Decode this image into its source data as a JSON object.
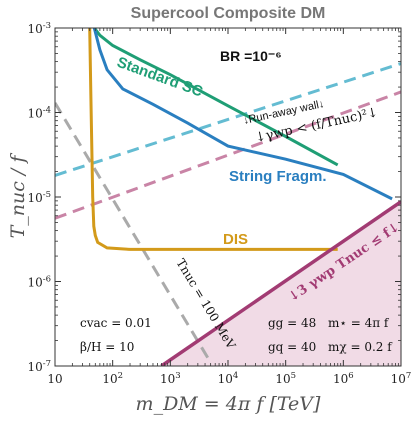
{
  "chart_data": {
    "type": "line",
    "title": "Supercool Composite DM",
    "xlabel": "m_DM = 4π f   [TeV]",
    "ylabel": "T_nuc / f",
    "x_scale": "log",
    "y_scale": "log",
    "xlim": [
      10,
      10000000
    ],
    "ylim": [
      1e-07,
      0.001
    ],
    "x_ticks": [
      "10",
      "10^2",
      "10^3",
      "10^4",
      "10^5",
      "10^6",
      "10^7"
    ],
    "y_ticks": [
      "10^-7",
      "10^-6",
      "10^-5",
      "10^-4",
      "10^-3"
    ],
    "grid": false,
    "colors": {
      "standard_sc": "#1f9e75",
      "string_fragm": "#2a7fc0",
      "dis": "#d39a1a",
      "run_away": "#64bcd2",
      "gamma_wp": "#c984a6",
      "tnuc_100mev": "#aaaaaa",
      "excluded_region": "#a23b73",
      "excluded_fill": "#f1dbe6"
    },
    "series": [
      {
        "name": "Standard SC",
        "x": [
          48,
          60,
          100,
          300,
          1000,
          10000,
          100000,
          800000
        ],
        "y": [
          0.001,
          0.00082,
          0.00062,
          0.00042,
          0.00028,
          0.00012,
          5.2e-05,
          2.4e-05
        ]
      },
      {
        "name": "String Fragm.",
        "x": [
          48,
          60,
          80,
          150,
          500,
          2000,
          10000,
          100000,
          1000000,
          7000000
        ],
        "y": [
          0.001,
          0.00055,
          0.00032,
          0.00019,
          0.000125,
          7.5e-05,
          4e-05,
          2.8e-05,
          1.85e-05,
          9.5e-06
        ]
      },
      {
        "name": "DIS",
        "x": [
          40,
          42,
          45,
          47,
          50,
          55,
          80,
          200,
          1000,
          10000,
          100000,
          800000
        ],
        "y": [
          0.001,
          0.00015,
          1e-05,
          4.5e-06,
          3.5e-06,
          2.9e-06,
          2.5e-06,
          2.4e-06,
          2.4e-06,
          2.4e-06,
          2.4e-06,
          2.4e-06
        ]
      },
      {
        "name": "Run-away wall",
        "x": [
          10,
          10000000
        ],
        "y": [
          1.8e-05,
          0.00038
        ]
      },
      {
        "name": "γ_wp < (f/T_nuc)^2",
        "x": [
          10,
          10000000
        ],
        "y": [
          5.6e-06,
          0.000175
        ]
      },
      {
        "name": "T_nuc = 100 MeV",
        "x": [
          10,
          5000
        ],
        "y": [
          0.00013,
          1.1e-07
        ]
      },
      {
        "name": "3 γ_wp T_nuc ≤ f",
        "x": [
          700,
          10000000
        ],
        "y": [
          1e-07,
          8.8e-06
        ]
      }
    ],
    "annotations": {
      "br": "BR =10⁻⁶",
      "standard_sc_label": "Standard SC",
      "string_label": "String Fragm.",
      "dis_label": "DIS",
      "run_away_label": "↓Run-away wall↓",
      "gamma_label": "↓γwp < (f/Tnuc)²↓",
      "tnuc_label": "Tnuc = 100 MeV",
      "excl_label": "↓3 γwp Tnuc ≤ f↓",
      "cvac": "cvac = 0.01",
      "beta_h": "β/H = 10",
      "gg": "gg = 48",
      "gq": "gq = 40",
      "mstar": "m⋆ = 4π f",
      "mchi": "mχ = 0.2 f"
    }
  }
}
